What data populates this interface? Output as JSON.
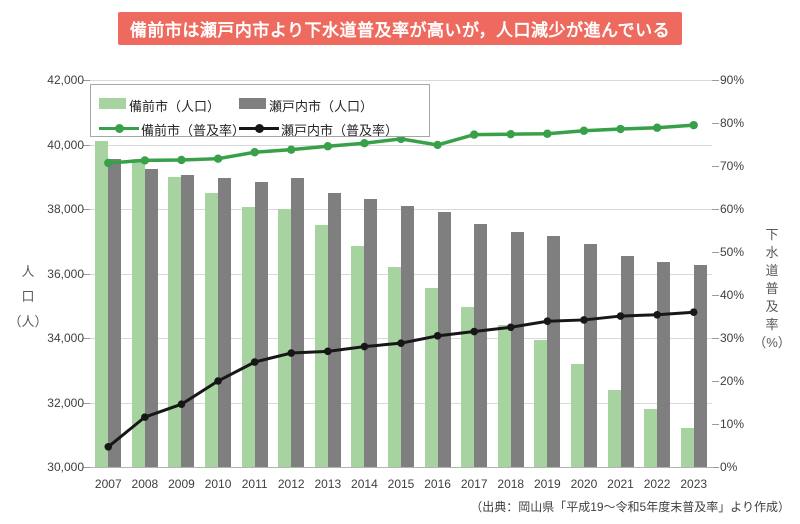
{
  "title": {
    "text": "備前市は瀬戸内市より下水道普及率が高いが，人口減少が進んでいる",
    "bg_color": "#ef6a5e",
    "text_color": "#ffffff"
  },
  "source_note": "（出典：岡山県「平成19～令和5年度末普及率」より作成）",
  "left_axis": {
    "title": "人口（人）",
    "title_lines": [
      "人",
      "口",
      "（人）"
    ],
    "ticks": [
      "42,000",
      "40,000",
      "38,000",
      "36,000",
      "34,000",
      "32,000",
      "30,000"
    ],
    "min": 30000,
    "max": 42000,
    "step": 2000
  },
  "right_axis": {
    "title": "下水道普及率（%）",
    "title_lines": [
      "下",
      "水",
      "道",
      "普",
      "及",
      "率",
      "（%）"
    ],
    "ticks": [
      "90%",
      "80%",
      "70%",
      "60%",
      "50%",
      "40%",
      "30%",
      "20%",
      "10%",
      "0%"
    ],
    "min": 0,
    "max": 90,
    "step": 10
  },
  "legend": {
    "items": [
      {
        "label": "備前市（人口）",
        "type": "bar",
        "color": "#a7d3a1"
      },
      {
        "label": "瀬戸内市（人口）",
        "type": "bar",
        "color": "#7f7f7f"
      },
      {
        "label": "備前市（普及率）",
        "type": "line",
        "color": "#38a049"
      },
      {
        "label": "瀬戸内市（普及率）",
        "type": "line",
        "color": "#171717"
      }
    ]
  },
  "chart_data": {
    "type": "bar",
    "subtype": "grouped bars with two overlay lines (dual axis)",
    "title": "備前市は瀬戸内市より下水道普及率が高いが，人口減少が進んでいる",
    "xlabel": "",
    "ylabel_left": "人口（人）",
    "ylabel_right": "下水道普及率（%）",
    "left_ylim": [
      30000,
      42000
    ],
    "right_ylim": [
      0,
      90
    ],
    "grid": true,
    "legend_position": "top-left-inside",
    "categories": [
      "2007",
      "2008",
      "2009",
      "2010",
      "2011",
      "2012",
      "2013",
      "2014",
      "2015",
      "2016",
      "2017",
      "2018",
      "2019",
      "2020",
      "2021",
      "2022",
      "2023"
    ],
    "series": [
      {
        "name": "備前市（人口）",
        "type": "bar",
        "axis": "left",
        "color": "#a7d3a1",
        "values": [
          40100,
          39550,
          39000,
          38500,
          38050,
          38000,
          37500,
          36850,
          36200,
          35550,
          34950,
          34400,
          33950,
          33200,
          32400,
          31800,
          31200
        ]
      },
      {
        "name": "瀬戸内市（人口）",
        "type": "bar",
        "axis": "left",
        "color": "#7f7f7f",
        "values": [
          39550,
          39250,
          39050,
          38950,
          38850,
          38950,
          38500,
          38300,
          38100,
          37900,
          37550,
          37300,
          37150,
          36900,
          36550,
          36350,
          36250
        ]
      },
      {
        "name": "備前市（普及率）",
        "type": "line",
        "axis": "right",
        "color": "#38a049",
        "values": [
          70.7,
          71.3,
          71.4,
          71.7,
          73.2,
          73.8,
          74.6,
          75.3,
          76.3,
          74.9,
          77.3,
          77.4,
          77.5,
          78.2,
          78.6,
          78.9,
          79.5
        ]
      },
      {
        "name": "瀬戸内市（普及率）",
        "type": "line",
        "axis": "right",
        "color": "#171717",
        "values": [
          4.7,
          11.6,
          14.6,
          20.0,
          24.4,
          26.5,
          26.9,
          28.0,
          28.8,
          30.5,
          31.5,
          32.5,
          33.9,
          34.2,
          35.1,
          35.4,
          36.0
        ]
      }
    ]
  }
}
